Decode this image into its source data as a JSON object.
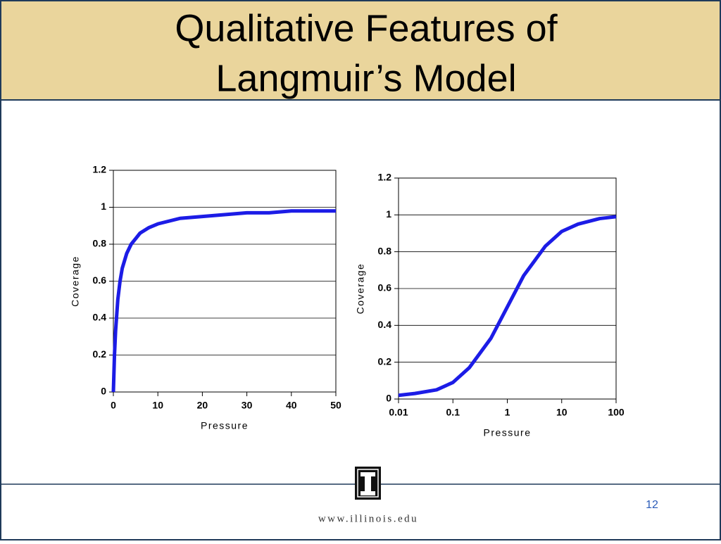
{
  "slide": {
    "title_line1": "Qualitative Features of",
    "title_line2": "Langmuir’s Model",
    "page_number": 12,
    "footer": "www.illinois.edu"
  },
  "chart_data": [
    {
      "type": "line",
      "x_label": "Pressure",
      "y_label": "Coverage",
      "log_x": false,
      "grid": true,
      "x": [
        0,
        0.25,
        0.5,
        1,
        1.5,
        2,
        3,
        4,
        5,
        6,
        8,
        10,
        15,
        20,
        25,
        30,
        35,
        40,
        45,
        50
      ],
      "series": [
        {
          "color": "#1c1ce6",
          "values": [
            0,
            0.2,
            0.33,
            0.5,
            0.6,
            0.67,
            0.75,
            0.8,
            0.83,
            0.86,
            0.89,
            0.91,
            0.94,
            0.95,
            0.96,
            0.97,
            0.97,
            0.98,
            0.98,
            0.98
          ]
        }
      ],
      "xlim": [
        0,
        50
      ],
      "xticks": [
        0,
        10,
        20,
        30,
        40,
        50
      ],
      "ylim": [
        0,
        1.2
      ],
      "yticks": [
        0,
        0.2,
        0.4,
        0.6,
        0.8,
        1,
        1.2
      ]
    },
    {
      "type": "line",
      "x_label": "Pressure",
      "y_label": "Coverage",
      "log_x": true,
      "grid": true,
      "x": [
        0.01,
        0.02,
        0.05,
        0.1,
        0.2,
        0.5,
        1,
        2,
        5,
        10,
        20,
        50,
        100
      ],
      "series": [
        {
          "color": "#1c1ce6",
          "values": [
            0.02,
            0.03,
            0.05,
            0.09,
            0.17,
            0.33,
            0.5,
            0.67,
            0.83,
            0.91,
            0.95,
            0.98,
            0.99
          ]
        }
      ],
      "xlim": [
        0.01,
        100
      ],
      "xticks": [
        0.01,
        0.1,
        1,
        10,
        100
      ],
      "ylim": [
        0,
        1.2
      ],
      "yticks": [
        0,
        0.2,
        0.4,
        0.6,
        0.8,
        1,
        1.2
      ]
    }
  ]
}
